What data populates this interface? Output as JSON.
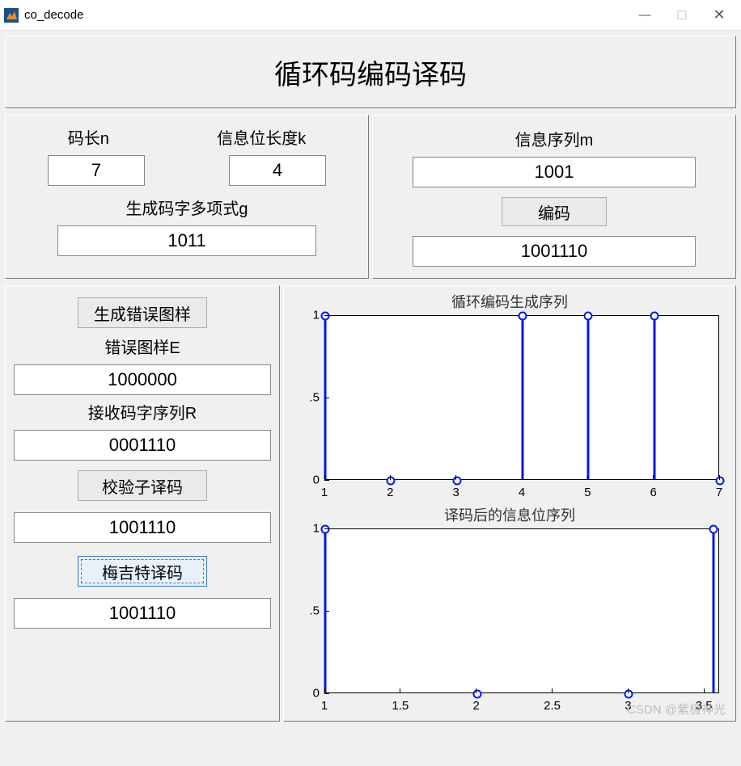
{
  "window": {
    "title": "co_decode"
  },
  "header": {
    "title": "循环码编码译码"
  },
  "params": {
    "n_label": "码长n",
    "k_label": "信息位长度k",
    "n_value": "7",
    "k_value": "4",
    "g_label": "生成码字多项式g",
    "g_value": "1011"
  },
  "encode": {
    "m_label": "信息序列m",
    "m_value": "1001",
    "encode_btn": "编码",
    "encoded_value": "1001110"
  },
  "decode": {
    "gen_error_btn": "生成错误图样",
    "error_label": "错误图样E",
    "error_value": "1000000",
    "r_label": "接收码字序列R",
    "r_value": "0001110",
    "syndrome_btn": "校验子译码",
    "syndrome_value": "1001110",
    "meggitt_btn": "梅吉特译码",
    "meggitt_value": "1001110"
  },
  "chart1": {
    "title": "循环编码生成序列",
    "yticks": [
      0,
      0.5,
      1
    ],
    "xticks": [
      1,
      2,
      3,
      4,
      5,
      6,
      7
    ],
    "xmin": 1,
    "xmax": 7,
    "ymin": 0,
    "ymax": 1,
    "stem_x": [
      1,
      2,
      3,
      4,
      5,
      6,
      7
    ],
    "stem_y": [
      1,
      0,
      0,
      1,
      1,
      1,
      0
    ],
    "line_color": "#0018ee",
    "marker_edge": "#0018ee",
    "marker_fill": "#ffffff"
  },
  "chart2": {
    "title": "译码后的信息位序列",
    "yticks": [
      0,
      0.5,
      1
    ],
    "xticks": [
      1,
      1.5,
      2,
      2.5,
      3,
      3.5
    ],
    "xmin": 1,
    "xmax": 3.6,
    "ymin": 0,
    "ymax": 1,
    "stem_x": [
      1,
      2,
      3,
      3.56
    ],
    "stem_y": [
      1,
      0,
      0,
      1
    ],
    "line_color": "#0018ee",
    "marker_edge": "#0018ee",
    "marker_fill": "#ffffff"
  },
  "watermark": "CSDN @紫极神光"
}
